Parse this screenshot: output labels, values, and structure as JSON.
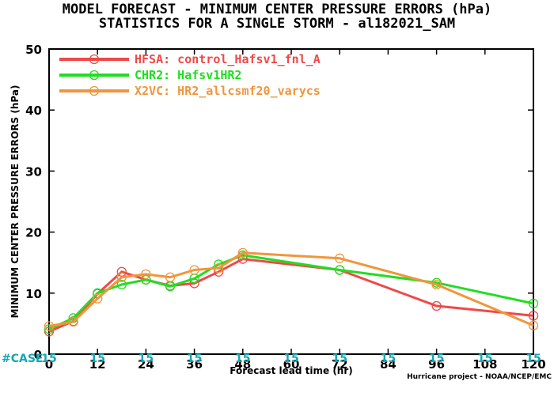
{
  "title_line1": "MODEL FORECAST - MINIMUM CENTER PRESSURE ERRORS (hPa)",
  "title_line2": "STATISTICS FOR A SINGLE STORM - al182021_SAM",
  "case_label": "#CASE",
  "credit": "Hurricane project - NOAA/NCEP/EMC",
  "chart_data": {
    "type": "line",
    "xlabel": "Forecast lead time (hr)",
    "ylabel": "MINIMUM CENTER PRESSURE ERRORS (hPa)",
    "xlim": [
      0,
      120
    ],
    "ylim": [
      0,
      50
    ],
    "xticks": [
      0,
      12,
      24,
      36,
      48,
      60,
      72,
      84,
      96,
      108,
      120
    ],
    "yticks": [
      0,
      10,
      20,
      30,
      40,
      50
    ],
    "grid": false,
    "legend_position": "top-left",
    "case_counts": [
      "15",
      "15",
      "15",
      "15",
      "15",
      "15",
      "15",
      "15",
      "15",
      "15",
      "15"
    ],
    "series": [
      {
        "name": "HFSA: control_Hafsv1_fnl_A",
        "color": "#f04848",
        "x": [
          0,
          6,
          12,
          18,
          24,
          30,
          36,
          42,
          48,
          72,
          96,
          120
        ],
        "y": [
          3.7,
          5.4,
          9.9,
          13.5,
          12.2,
          11.2,
          11.6,
          13.5,
          15.6,
          13.8,
          7.9,
          6.3
        ]
      },
      {
        "name": "CHR2: Hafsv1HR2",
        "color": "#22dd22",
        "x": [
          0,
          6,
          12,
          18,
          24,
          30,
          36,
          42,
          48,
          72,
          96,
          120
        ],
        "y": [
          4.1,
          5.9,
          10.0,
          11.4,
          12.2,
          11.1,
          12.4,
          14.7,
          16.2,
          13.8,
          11.7,
          8.3
        ]
      },
      {
        "name": "X2VC: HR2_allcsmf20_varycs",
        "color": "#f0963c",
        "x": [
          0,
          6,
          12,
          18,
          24,
          30,
          36,
          42,
          48,
          72,
          96,
          120
        ],
        "y": [
          4.6,
          5.3,
          9.1,
          12.6,
          13.1,
          12.6,
          13.8,
          14.1,
          16.6,
          15.7,
          11.4,
          4.7
        ]
      }
    ]
  }
}
